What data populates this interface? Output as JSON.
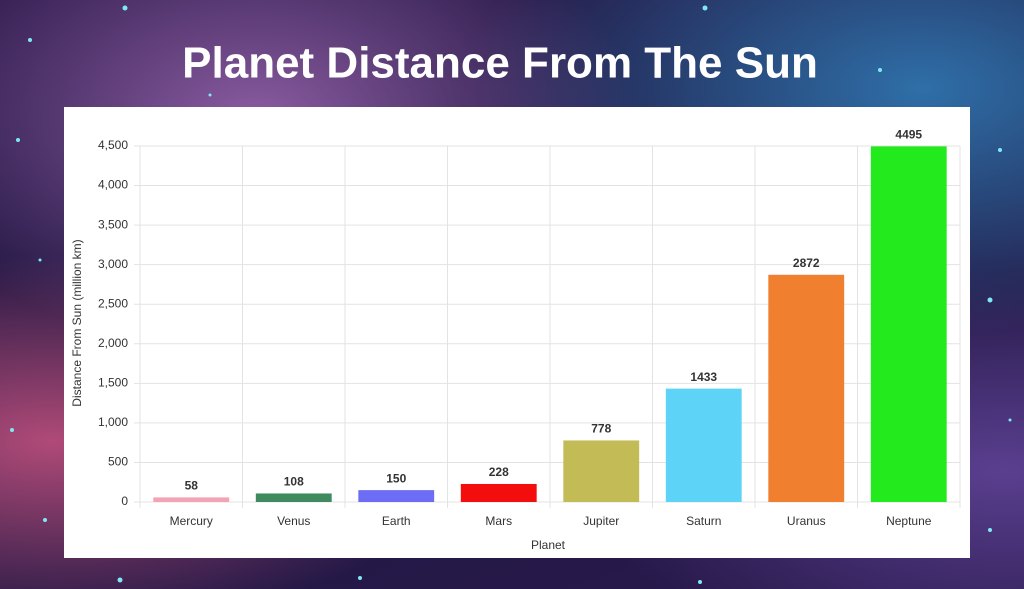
{
  "chart_data": {
    "type": "bar",
    "title": "Planet Distance From The Sun",
    "x_label": "Planet",
    "y_label": "Distance From Sun (million km)",
    "categories": [
      "Mercury",
      "Venus",
      "Earth",
      "Mars",
      "Jupiter",
      "Saturn",
      "Uranus",
      "Neptune"
    ],
    "values": [
      58,
      108,
      150,
      228,
      778,
      1433,
      2872,
      4495
    ],
    "colors": [
      "#f2a3b5",
      "#3f8a5e",
      "#6c6cf5",
      "#f40d0d",
      "#c3bb55",
      "#5dd3f7",
      "#f07f2f",
      "#22ea1d"
    ],
    "ylim": [
      0,
      4500
    ],
    "yticks": [
      0,
      500,
      {
        "value": 1000,
        "label": "1,000"
      },
      {
        "value": 1500,
        "label": "1,500"
      },
      {
        "value": 2000,
        "label": "2,000"
      },
      {
        "value": 2500,
        "label": "2,500"
      },
      {
        "value": 3000,
        "label": "3,000"
      },
      {
        "value": 3500,
        "label": "3,500"
      },
      {
        "value": 4000,
        "label": "4,000"
      },
      {
        "value": 4500,
        "label": "4,500"
      }
    ],
    "grid": true
  }
}
